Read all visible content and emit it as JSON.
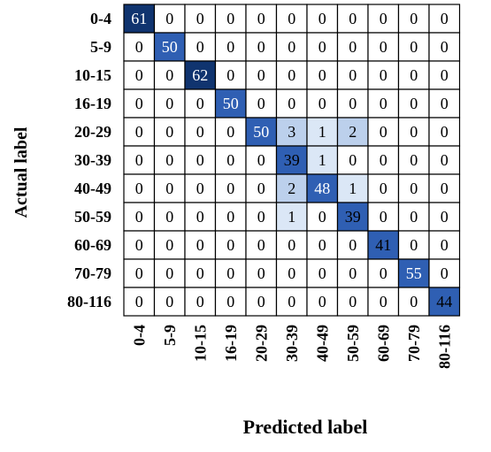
{
  "chart_data": {
    "type": "heatmap",
    "title": "",
    "xlabel": "Predicted label",
    "ylabel": "Actual label",
    "x_categories": [
      "0-4",
      "5-9",
      "10-15",
      "16-19",
      "20-29",
      "30-39",
      "40-49",
      "50-59",
      "60-69",
      "70-79",
      "80-116"
    ],
    "y_categories": [
      "0-4",
      "5-9",
      "10-15",
      "16-19",
      "20-29",
      "30-39",
      "40-49",
      "50-59",
      "60-69",
      "70-79",
      "80-116"
    ],
    "values": [
      [
        61,
        0,
        0,
        0,
        0,
        0,
        0,
        0,
        0,
        0,
        0
      ],
      [
        0,
        50,
        0,
        0,
        0,
        0,
        0,
        0,
        0,
        0,
        0
      ],
      [
        0,
        0,
        62,
        0,
        0,
        0,
        0,
        0,
        0,
        0,
        0
      ],
      [
        0,
        0,
        0,
        50,
        0,
        0,
        0,
        0,
        0,
        0,
        0
      ],
      [
        0,
        0,
        0,
        0,
        50,
        3,
        1,
        2,
        0,
        0,
        0
      ],
      [
        0,
        0,
        0,
        0,
        0,
        39,
        1,
        0,
        0,
        0,
        0
      ],
      [
        0,
        0,
        0,
        0,
        0,
        2,
        48,
        1,
        0,
        0,
        0
      ],
      [
        0,
        0,
        0,
        0,
        0,
        1,
        0,
        39,
        0,
        0,
        0
      ],
      [
        0,
        0,
        0,
        0,
        0,
        0,
        0,
        0,
        41,
        0,
        0
      ],
      [
        0,
        0,
        0,
        0,
        0,
        0,
        0,
        0,
        0,
        55,
        0
      ],
      [
        0,
        0,
        0,
        0,
        0,
        0,
        0,
        0,
        0,
        0,
        44
      ]
    ],
    "colors": {
      "low": "#ffffff",
      "light": "#dbe7f6",
      "mid": "#bcd0ec",
      "high": "#2f5fb3",
      "max": "#10346f",
      "text_dark": "#000000",
      "text_light": "#ffffff",
      "grid": "#000000"
    }
  }
}
